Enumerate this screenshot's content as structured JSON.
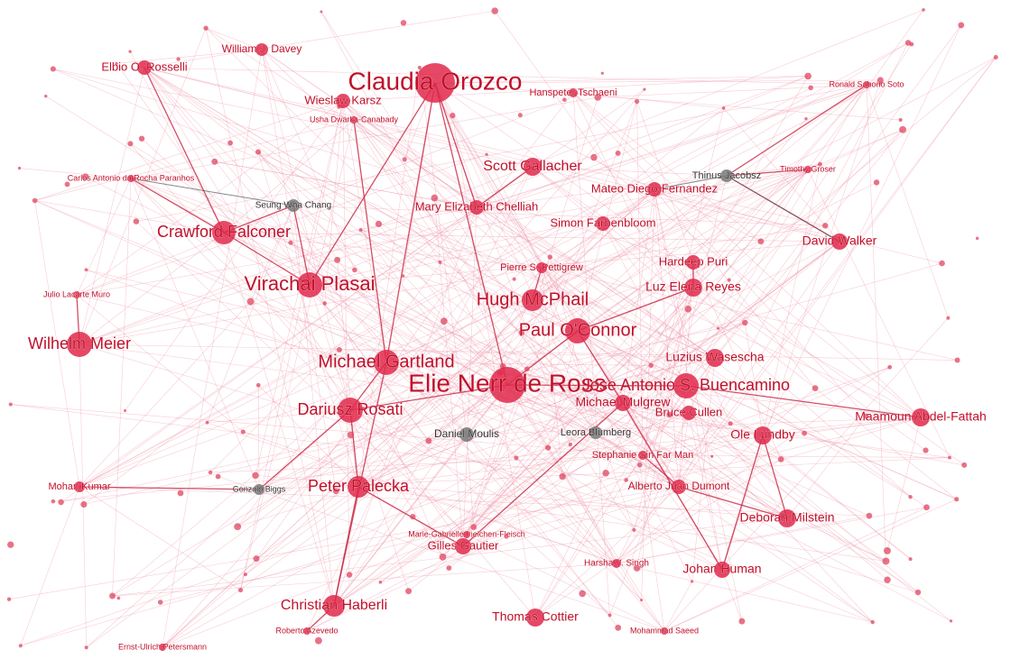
{
  "nodes": [
    {
      "label": "Claudia Orozco"
    },
    {
      "label": "Elie Nerr de Ross"
    },
    {
      "label": "Paul O'Connor"
    },
    {
      "label": "Hugh McPhail"
    },
    {
      "label": "Jose Antonio S. Buencamino"
    },
    {
      "label": "Michael Gartland"
    },
    {
      "label": "Dariusz Rosati"
    },
    {
      "label": "Virachai Plasai"
    },
    {
      "label": "Crawford Falconer"
    },
    {
      "label": "Wilhelm Meier"
    },
    {
      "label": "Peter Palecka"
    },
    {
      "label": "Christian Haberli"
    },
    {
      "label": "Scott Gallacher"
    },
    {
      "label": "Thomas Cottier"
    },
    {
      "label": "Maamoun Abdel-Fattah"
    },
    {
      "label": "Ole Lundby"
    },
    {
      "label": "Deborah Milstein"
    },
    {
      "label": "Johan Human"
    },
    {
      "label": "Luz Elena Reyes"
    },
    {
      "label": "Luzius Wasescha"
    },
    {
      "label": "Michael Mulgrew"
    },
    {
      "label": "Bruce Cullen"
    },
    {
      "label": "David Walker"
    },
    {
      "label": "Hardeep Puri"
    },
    {
      "label": "Simon Farbenbloom"
    },
    {
      "label": "Mateo Diego-Fernandez"
    },
    {
      "label": "Mary Elizabeth Chelliah"
    },
    {
      "label": "Wieslaw Karsz"
    },
    {
      "label": "Elbio O. Rosselli"
    },
    {
      "label": "William J. Davey"
    },
    {
      "label": "Gilles Gautier"
    },
    {
      "label": "Alberto Juan Dumont"
    },
    {
      "label": "Stephanie Sin Far Man"
    },
    {
      "label": "Mohan Kumar"
    },
    {
      "label": "Pierre S. Pettigrew"
    },
    {
      "label": "Hanspeter Tschaeni"
    },
    {
      "label": "Daniel Moulis"
    },
    {
      "label": "Leora Blumberg"
    },
    {
      "label": "Seung Wha Chang"
    },
    {
      "label": "Thinus Jacobsz"
    },
    {
      "label": "Gonzalo Biggs"
    },
    {
      "label": "Harsha V. Singh"
    },
    {
      "label": "Timothy Groser"
    },
    {
      "label": "Ronald Saborio Soto"
    },
    {
      "label": "Mohammad Saeed"
    },
    {
      "label": "Roberto Azevedo"
    },
    {
      "label": "Ernst-Ulrich Petersmann"
    },
    {
      "label": "Carlos Antonio da Rocha Paranhos"
    },
    {
      "label": "Julio Lacarte Muro"
    },
    {
      "label": "Usha Dwarka-Canabady"
    },
    {
      "label": "Marie-Gabrielle Ineichen-Fleisch"
    }
  ]
}
